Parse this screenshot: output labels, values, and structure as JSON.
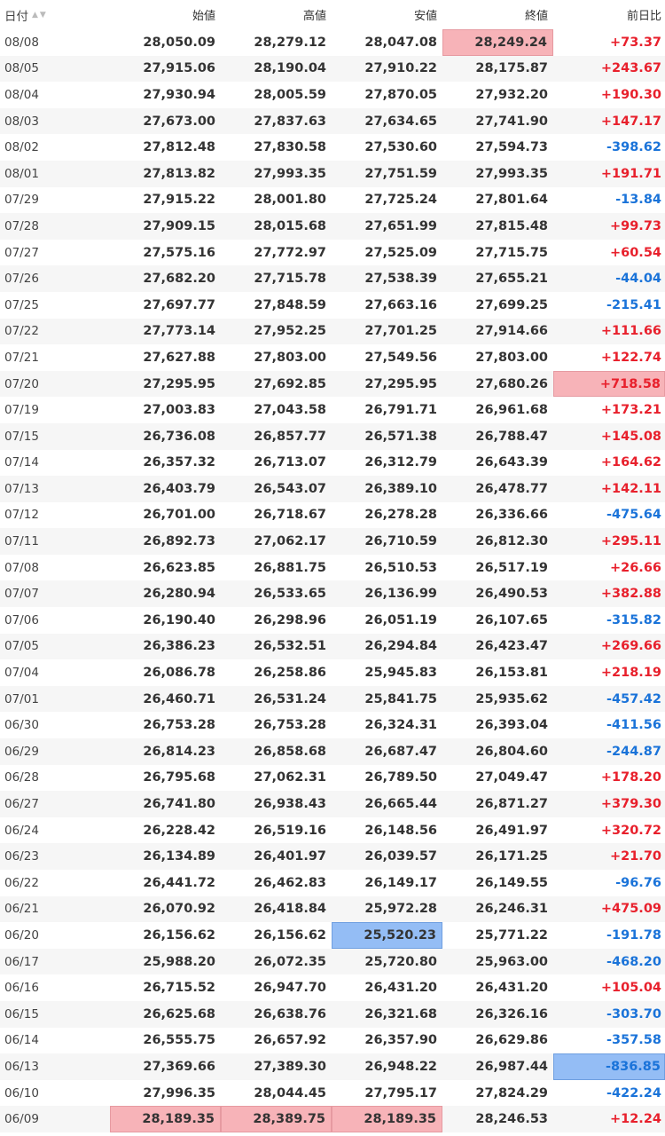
{
  "headers": [
    "日付",
    "始値",
    "高値",
    "安値",
    "終値",
    "前日比"
  ],
  "sort_icons": "▲▼",
  "colors": {
    "highlight_red": "#f7b3b8",
    "highlight_blue": "#94bdf5",
    "positive": "#e8202c",
    "negative": "#1a73d9"
  },
  "rows": [
    [
      "08/08",
      "28,050.09",
      "28,279.12",
      "28,047.08",
      "28,249.24",
      "+73.37"
    ],
    [
      "08/05",
      "27,915.06",
      "28,190.04",
      "27,910.22",
      "28,175.87",
      "+243.67"
    ],
    [
      "08/04",
      "27,930.94",
      "28,005.59",
      "27,870.05",
      "27,932.20",
      "+190.30"
    ],
    [
      "08/03",
      "27,673.00",
      "27,837.63",
      "27,634.65",
      "27,741.90",
      "+147.17"
    ],
    [
      "08/02",
      "27,812.48",
      "27,830.58",
      "27,530.60",
      "27,594.73",
      "-398.62"
    ],
    [
      "08/01",
      "27,813.82",
      "27,993.35",
      "27,751.59",
      "27,993.35",
      "+191.71"
    ],
    [
      "07/29",
      "27,915.22",
      "28,001.80",
      "27,725.24",
      "27,801.64",
      "-13.84"
    ],
    [
      "07/28",
      "27,909.15",
      "28,015.68",
      "27,651.99",
      "27,815.48",
      "+99.73"
    ],
    [
      "07/27",
      "27,575.16",
      "27,772.97",
      "27,525.09",
      "27,715.75",
      "+60.54"
    ],
    [
      "07/26",
      "27,682.20",
      "27,715.78",
      "27,538.39",
      "27,655.21",
      "-44.04"
    ],
    [
      "07/25",
      "27,697.77",
      "27,848.59",
      "27,663.16",
      "27,699.25",
      "-215.41"
    ],
    [
      "07/22",
      "27,773.14",
      "27,952.25",
      "27,701.25",
      "27,914.66",
      "+111.66"
    ],
    [
      "07/21",
      "27,627.88",
      "27,803.00",
      "27,549.56",
      "27,803.00",
      "+122.74"
    ],
    [
      "07/20",
      "27,295.95",
      "27,692.85",
      "27,295.95",
      "27,680.26",
      "+718.58"
    ],
    [
      "07/19",
      "27,003.83",
      "27,043.58",
      "26,791.71",
      "26,961.68",
      "+173.21"
    ],
    [
      "07/15",
      "26,736.08",
      "26,857.77",
      "26,571.38",
      "26,788.47",
      "+145.08"
    ],
    [
      "07/14",
      "26,357.32",
      "26,713.07",
      "26,312.79",
      "26,643.39",
      "+164.62"
    ],
    [
      "07/13",
      "26,403.79",
      "26,543.07",
      "26,389.10",
      "26,478.77",
      "+142.11"
    ],
    [
      "07/12",
      "26,701.00",
      "26,718.67",
      "26,278.28",
      "26,336.66",
      "-475.64"
    ],
    [
      "07/11",
      "26,892.73",
      "27,062.17",
      "26,710.59",
      "26,812.30",
      "+295.11"
    ],
    [
      "07/08",
      "26,623.85",
      "26,881.75",
      "26,510.53",
      "26,517.19",
      "+26.66"
    ],
    [
      "07/07",
      "26,280.94",
      "26,533.65",
      "26,136.99",
      "26,490.53",
      "+382.88"
    ],
    [
      "07/06",
      "26,190.40",
      "26,298.96",
      "26,051.19",
      "26,107.65",
      "-315.82"
    ],
    [
      "07/05",
      "26,386.23",
      "26,532.51",
      "26,294.84",
      "26,423.47",
      "+269.66"
    ],
    [
      "07/04",
      "26,086.78",
      "26,258.86",
      "25,945.83",
      "26,153.81",
      "+218.19"
    ],
    [
      "07/01",
      "26,460.71",
      "26,531.24",
      "25,841.75",
      "25,935.62",
      "-457.42"
    ],
    [
      "06/30",
      "26,753.28",
      "26,753.28",
      "26,324.31",
      "26,393.04",
      "-411.56"
    ],
    [
      "06/29",
      "26,814.23",
      "26,858.68",
      "26,687.47",
      "26,804.60",
      "-244.87"
    ],
    [
      "06/28",
      "26,795.68",
      "27,062.31",
      "26,789.50",
      "27,049.47",
      "+178.20"
    ],
    [
      "06/27",
      "26,741.80",
      "26,938.43",
      "26,665.44",
      "26,871.27",
      "+379.30"
    ],
    [
      "06/24",
      "26,228.42",
      "26,519.16",
      "26,148.56",
      "26,491.97",
      "+320.72"
    ],
    [
      "06/23",
      "26,134.89",
      "26,401.97",
      "26,039.57",
      "26,171.25",
      "+21.70"
    ],
    [
      "06/22",
      "26,441.72",
      "26,462.83",
      "26,149.17",
      "26,149.55",
      "-96.76"
    ],
    [
      "06/21",
      "26,070.92",
      "26,418.84",
      "25,972.28",
      "26,246.31",
      "+475.09"
    ],
    [
      "06/20",
      "26,156.62",
      "26,156.62",
      "25,520.23",
      "25,771.22",
      "-191.78"
    ],
    [
      "06/17",
      "25,988.20",
      "26,072.35",
      "25,720.80",
      "25,963.00",
      "-468.20"
    ],
    [
      "06/16",
      "26,715.52",
      "26,947.70",
      "26,431.20",
      "26,431.20",
      "+105.04"
    ],
    [
      "06/15",
      "26,625.68",
      "26,638.76",
      "26,321.68",
      "26,326.16",
      "-303.70"
    ],
    [
      "06/14",
      "26,555.75",
      "26,657.92",
      "26,357.90",
      "26,629.86",
      "-357.58"
    ],
    [
      "06/13",
      "27,369.66",
      "27,389.30",
      "26,948.22",
      "26,987.44",
      "-836.85"
    ],
    [
      "06/10",
      "27,996.35",
      "28,044.45",
      "27,795.17",
      "27,824.29",
      "-422.24"
    ],
    [
      "06/09",
      "28,189.35",
      "28,389.75",
      "28,189.35",
      "28,246.53",
      "+12.24"
    ]
  ],
  "highlights": [
    {
      "row": 0,
      "col": 4,
      "color": "red"
    },
    {
      "row": 13,
      "col": 5,
      "color": "red"
    },
    {
      "row": 34,
      "col": 3,
      "color": "blue"
    },
    {
      "row": 39,
      "col": 5,
      "color": "blue"
    },
    {
      "row": 41,
      "col": 1,
      "color": "red"
    },
    {
      "row": 41,
      "col": 2,
      "color": "red"
    },
    {
      "row": 41,
      "col": 3,
      "color": "red"
    }
  ]
}
